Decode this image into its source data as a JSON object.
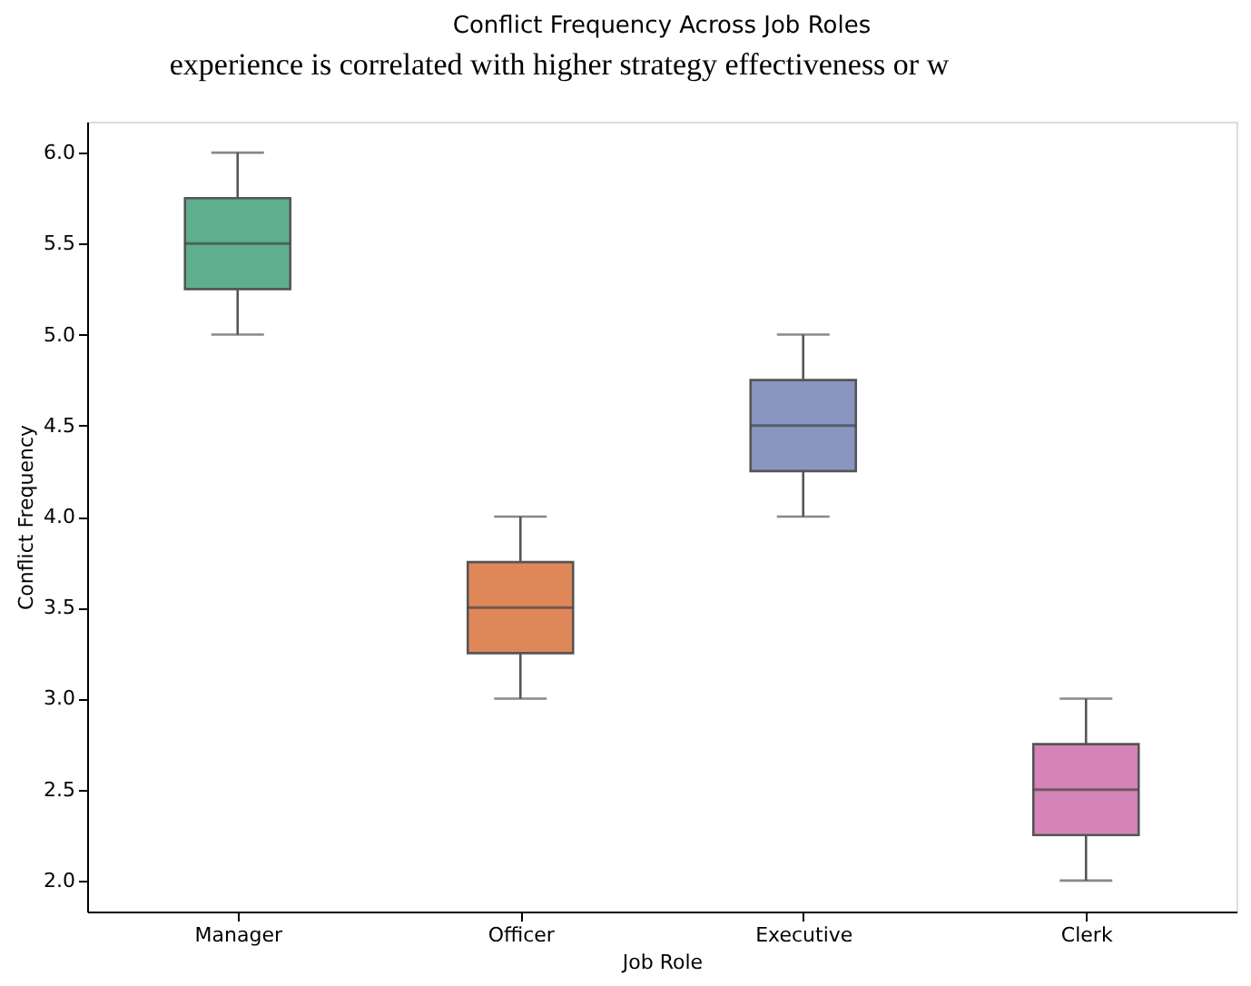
{
  "chart_data": {
    "type": "box",
    "title": "Conflict Frequency Across Job Roles",
    "xlabel": "Job Role",
    "ylabel": "Conflict Frequency",
    "annotations": [
      "experience is correlated with higher strategy effectiveness or w"
    ],
    "categories": [
      "Manager",
      "Officer",
      "Executive",
      "Clerk"
    ],
    "colors": [
      "#5fae8e",
      "#e0875a",
      "#8896c0",
      "#d484b8"
    ],
    "boxes": [
      {
        "low": 5.0,
        "q1": 5.25,
        "median": 5.5,
        "q3": 5.75,
        "high": 6.0
      },
      {
        "low": 3.0,
        "q1": 3.25,
        "median": 3.5,
        "q3": 3.75,
        "high": 4.0
      },
      {
        "low": 4.0,
        "q1": 4.25,
        "median": 4.5,
        "q3": 4.75,
        "high": 5.0
      },
      {
        "low": 2.0,
        "q1": 2.25,
        "median": 2.5,
        "q3": 2.75,
        "high": 3.0
      }
    ],
    "ylim": [
      1.83,
      6.17
    ],
    "yticks": [
      {
        "value": 2.0,
        "label": "2.0"
      },
      {
        "value": 2.5,
        "label": "2.5"
      },
      {
        "value": 3.0,
        "label": "3.0"
      },
      {
        "value": 3.5,
        "label": "3.5"
      },
      {
        "value": 4.0,
        "label": "4.0"
      },
      {
        "value": 4.5,
        "label": "4.5"
      },
      {
        "value": 5.0,
        "label": "5.0"
      },
      {
        "value": 5.5,
        "label": "5.5"
      },
      {
        "value": 6.0,
        "label": "6.0"
      }
    ],
    "grid": false
  }
}
